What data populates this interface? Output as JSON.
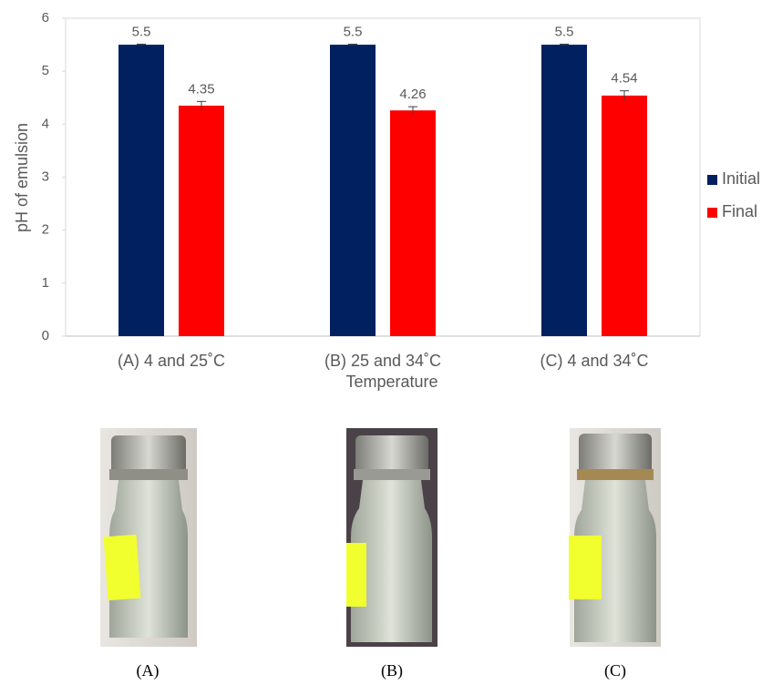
{
  "chart_data": {
    "type": "bar",
    "y_label": "pH of emulsion",
    "x_label": "Temperature",
    "categories": [
      "(A) 4 and 25˚C",
      "(B) 25 and 34˚C",
      "(C) 4 and 34˚C"
    ],
    "series": [
      {
        "name": "Initial",
        "color": "#002060",
        "values": [
          5.5,
          5.5,
          5.5
        ],
        "errors": [
          0.01,
          0.01,
          0.01
        ]
      },
      {
        "name": "Final",
        "color": "#ff0000",
        "values": [
          4.35,
          4.26,
          4.54
        ],
        "errors": [
          0.08,
          0.07,
          0.09
        ]
      }
    ],
    "ylim": [
      0,
      6
    ],
    "yticks": [
      0,
      1,
      2,
      3,
      4,
      5,
      6
    ],
    "legend": "right"
  },
  "photos": {
    "captions": [
      "(A)",
      "(B)",
      "(C)"
    ]
  }
}
